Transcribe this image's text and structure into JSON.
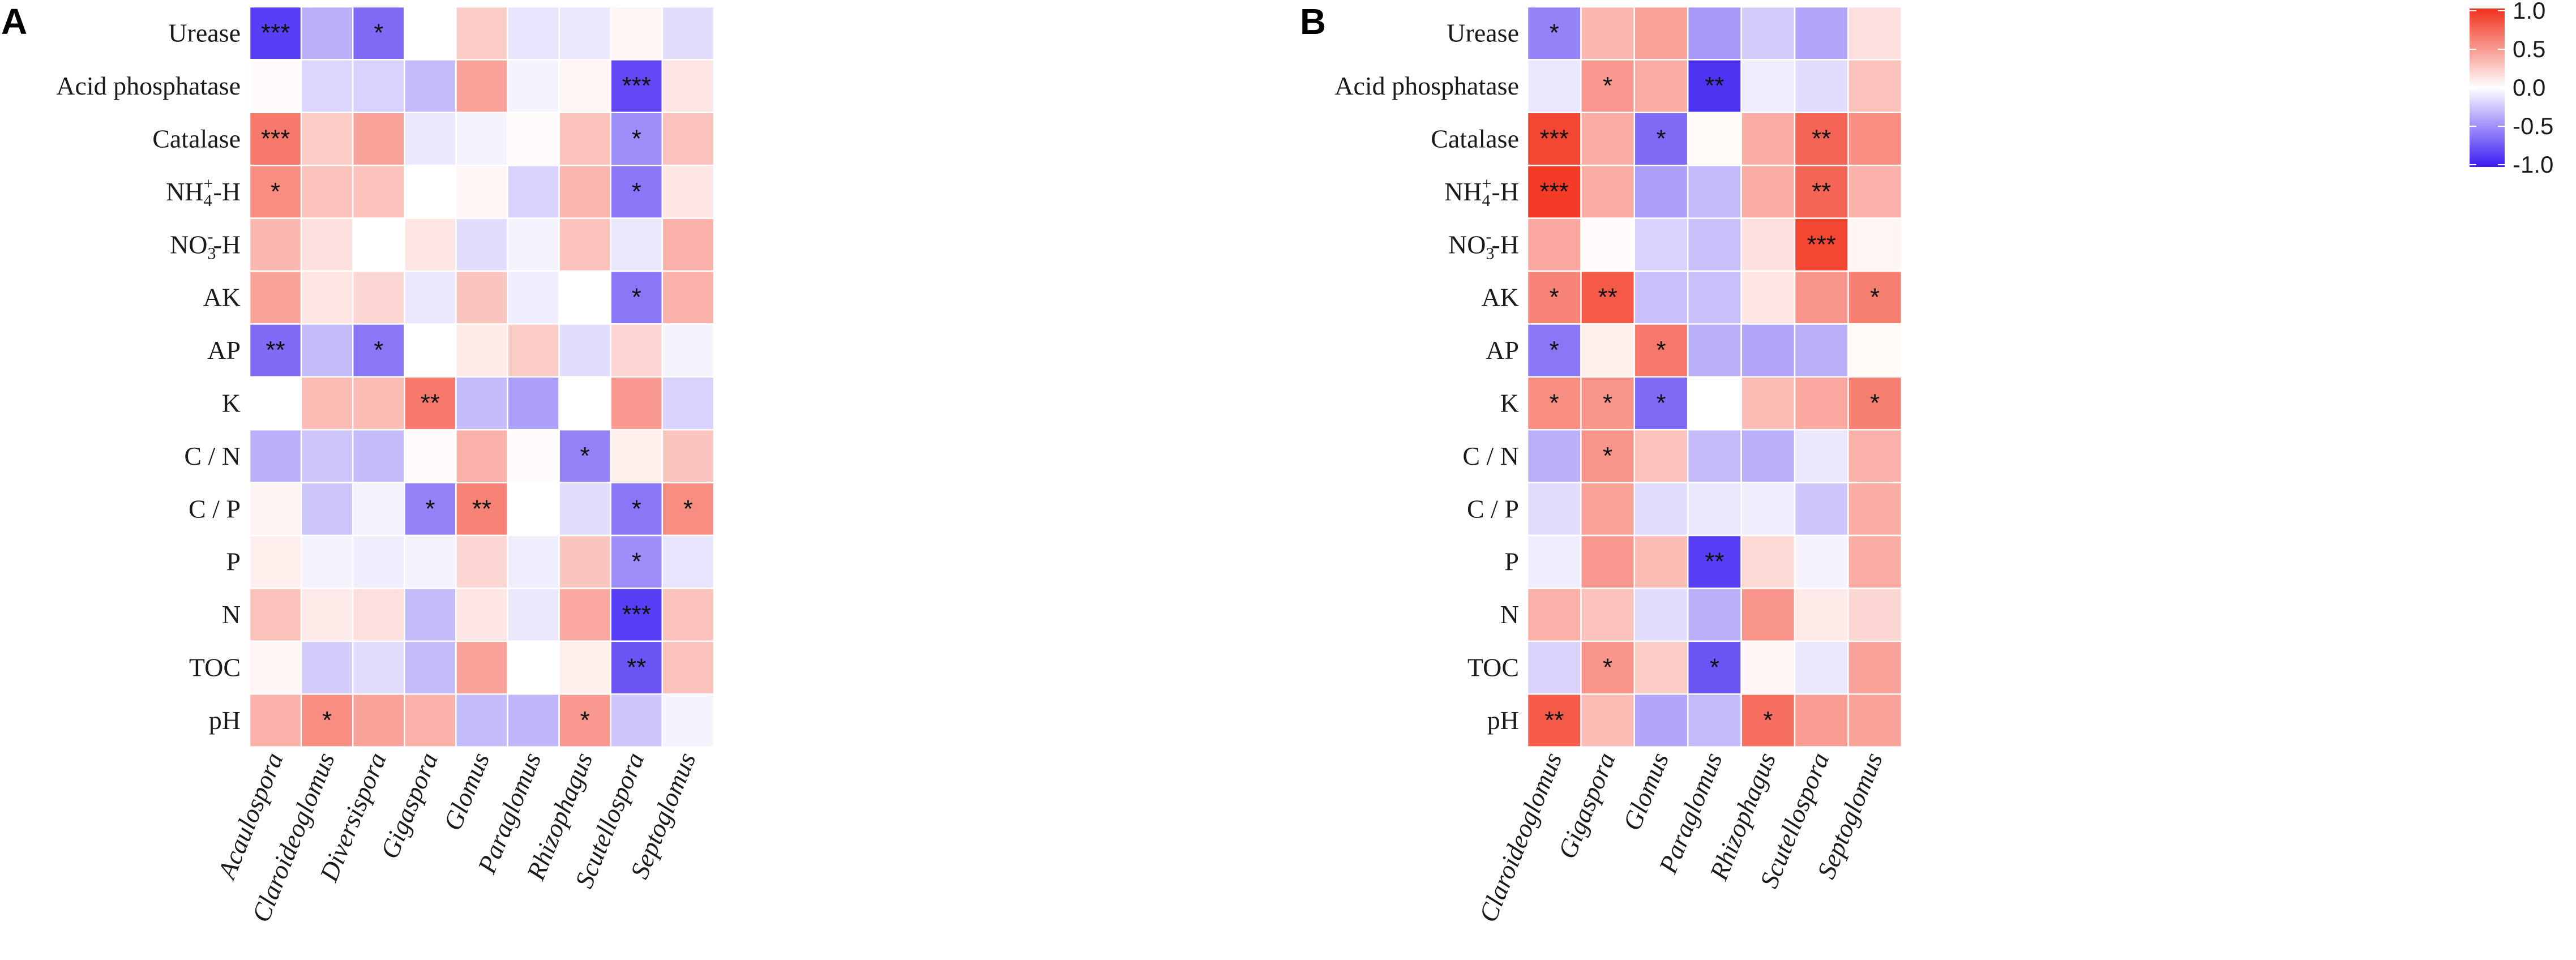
{
  "chart_data": [
    {
      "type": "heatmap",
      "panel": "A",
      "rows": [
        "Urease",
        "Acid phosphatase",
        "Catalase",
        "NH4+-H",
        "NO3--H",
        "AK",
        "AP",
        "K",
        "C / N",
        "C / P",
        "P",
        "N",
        "TOC",
        "pH"
      ],
      "row_labels_display": [
        {
          "base": "Urease"
        },
        {
          "base": "Acid phosphatase"
        },
        {
          "base": "Catalase"
        },
        {
          "base": "NH",
          "sub": "4",
          "sup": "+",
          "tail": "-H"
        },
        {
          "base": "NO",
          "sub": "3",
          "sup": "-",
          "tail": "-H"
        },
        {
          "base": "AK"
        },
        {
          "base": "AP"
        },
        {
          "base": "K"
        },
        {
          "base": "C / N"
        },
        {
          "base": "C / P"
        },
        {
          "base": "P"
        },
        {
          "base": "N"
        },
        {
          "base": "TOC"
        },
        {
          "base": "pH"
        }
      ],
      "columns": [
        "Acaulospora",
        "Claroideoglomus",
        "Diversispora",
        "Gigaspora",
        "Glomus",
        "Paraglomus",
        "Rhizophagus",
        "Scutellospora",
        "Septoglomus"
      ],
      "values": [
        [
          -0.85,
          -0.35,
          -0.65,
          0.0,
          0.25,
          -0.12,
          -0.1,
          0.05,
          -0.15
        ],
        [
          0.02,
          -0.18,
          -0.2,
          -0.3,
          0.45,
          -0.05,
          0.05,
          -0.8,
          0.12
        ],
        [
          0.65,
          0.25,
          0.45,
          -0.1,
          -0.05,
          0.02,
          0.3,
          -0.5,
          0.3
        ],
        [
          0.55,
          0.3,
          0.3,
          0.0,
          0.05,
          -0.2,
          0.35,
          -0.6,
          0.12
        ],
        [
          0.35,
          0.15,
          0.0,
          0.12,
          -0.15,
          -0.05,
          0.3,
          -0.1,
          0.38
        ],
        [
          0.45,
          0.12,
          0.2,
          -0.1,
          0.28,
          -0.08,
          0.0,
          -0.6,
          0.38
        ],
        [
          -0.65,
          -0.3,
          -0.6,
          0.0,
          0.1,
          0.25,
          -0.15,
          0.2,
          -0.05
        ],
        [
          0.0,
          0.32,
          0.32,
          0.65,
          -0.3,
          -0.42,
          0.0,
          0.5,
          -0.2
        ],
        [
          -0.35,
          -0.25,
          -0.3,
          0.02,
          0.38,
          0.02,
          -0.55,
          0.08,
          0.28
        ],
        [
          0.06,
          -0.25,
          -0.05,
          -0.55,
          0.6,
          0.0,
          -0.15,
          -0.6,
          0.55
        ],
        [
          0.08,
          -0.05,
          -0.08,
          -0.05,
          0.2,
          -0.08,
          0.28,
          -0.5,
          -0.12
        ],
        [
          0.3,
          0.1,
          0.15,
          -0.3,
          0.12,
          -0.1,
          0.42,
          -0.85,
          0.3
        ],
        [
          0.04,
          -0.22,
          -0.15,
          -0.3,
          0.45,
          0.0,
          0.08,
          -0.75,
          0.3
        ],
        [
          0.38,
          0.55,
          0.45,
          0.38,
          -0.3,
          -0.32,
          0.5,
          -0.25,
          -0.05
        ]
      ],
      "significance": [
        [
          "***",
          "",
          "*",
          "",
          "",
          "",
          "",
          "",
          ""
        ],
        [
          "",
          "",
          "",
          "",
          "",
          "",
          "",
          "***",
          ""
        ],
        [
          "***",
          "",
          "",
          "",
          "",
          "",
          "",
          "*",
          ""
        ],
        [
          "*",
          "",
          "",
          "",
          "",
          "",
          "",
          "*",
          ""
        ],
        [
          "",
          "",
          "",
          "",
          "",
          "",
          "",
          "",
          ""
        ],
        [
          "",
          "",
          "",
          "",
          "",
          "",
          "",
          "*",
          ""
        ],
        [
          "**",
          "",
          "*",
          "",
          "",
          "",
          "",
          "",
          ""
        ],
        [
          "",
          "",
          "",
          "**",
          "",
          "",
          "",
          "",
          ""
        ],
        [
          "",
          "",
          "",
          "",
          "",
          "",
          "*",
          "",
          ""
        ],
        [
          "",
          "",
          "",
          "*",
          "**",
          "",
          "",
          "*",
          "*"
        ],
        [
          "",
          "",
          "",
          "",
          "",
          "",
          "",
          "*",
          ""
        ],
        [
          "",
          "",
          "",
          "",
          "",
          "",
          "",
          "***",
          ""
        ],
        [
          "",
          "",
          "",
          "",
          "",
          "",
          "",
          "**",
          ""
        ],
        [
          "",
          "*",
          "",
          "",
          "",
          "",
          "*",
          "",
          ""
        ]
      ]
    },
    {
      "type": "heatmap",
      "panel": "B",
      "rows": [
        "Urease",
        "Acid phosphatase",
        "Catalase",
        "NH4+-H",
        "NO3--H",
        "AK",
        "AP",
        "K",
        "C / N",
        "C / P",
        "P",
        "N",
        "TOC",
        "pH"
      ],
      "row_labels_display": [
        {
          "base": "Urease"
        },
        {
          "base": "Acid phosphatase"
        },
        {
          "base": "Catalase"
        },
        {
          "base": "NH",
          "sub": "4",
          "sup": "+",
          "tail": "-H"
        },
        {
          "base": "NO",
          "sub": "3",
          "sup": "-",
          "tail": "-H"
        },
        {
          "base": "AK"
        },
        {
          "base": "AP"
        },
        {
          "base": "K"
        },
        {
          "base": "C / N"
        },
        {
          "base": "C / P"
        },
        {
          "base": "P"
        },
        {
          "base": "N"
        },
        {
          "base": "TOC"
        },
        {
          "base": "pH"
        }
      ],
      "columns": [
        "Claroideoglomus",
        "Gigaspora",
        "Glomus",
        "Paraglomus",
        "Rhizophagus",
        "Scutellospora",
        "Septoglomus"
      ],
      "values": [
        [
          -0.55,
          0.35,
          0.45,
          -0.45,
          -0.22,
          -0.4,
          0.15
        ],
        [
          -0.1,
          0.5,
          0.4,
          -0.9,
          -0.08,
          -0.15,
          0.3
        ],
        [
          0.9,
          0.4,
          -0.65,
          0.03,
          0.4,
          0.75,
          0.55
        ],
        [
          0.95,
          0.4,
          -0.42,
          -0.3,
          0.4,
          0.75,
          0.38
        ],
        [
          0.42,
          0.02,
          -0.2,
          -0.28,
          0.15,
          0.9,
          0.05
        ],
        [
          0.6,
          0.8,
          -0.28,
          -0.28,
          0.12,
          0.52,
          0.62
        ],
        [
          -0.6,
          0.08,
          0.65,
          -0.35,
          -0.4,
          -0.35,
          0.03
        ],
        [
          0.55,
          0.52,
          -0.65,
          0.0,
          0.32,
          0.42,
          0.62
        ],
        [
          -0.35,
          0.52,
          0.3,
          -0.3,
          -0.35,
          -0.1,
          0.38
        ],
        [
          -0.15,
          0.45,
          -0.15,
          -0.1,
          -0.08,
          -0.25,
          0.4
        ],
        [
          -0.08,
          0.5,
          0.32,
          -0.85,
          0.18,
          -0.05,
          0.4
        ],
        [
          0.38,
          0.3,
          -0.15,
          -0.35,
          0.52,
          0.1,
          0.2
        ],
        [
          -0.2,
          0.52,
          0.25,
          -0.75,
          0.05,
          -0.1,
          0.45
        ],
        [
          0.8,
          0.32,
          -0.4,
          -0.3,
          0.7,
          0.48,
          0.45
        ]
      ],
      "significance": [
        [
          "*",
          "",
          "",
          "",
          "",
          "",
          ""
        ],
        [
          "",
          "*",
          "",
          "**",
          "",
          "",
          ""
        ],
        [
          "***",
          "",
          "*",
          "",
          "",
          "**",
          ""
        ],
        [
          "***",
          "",
          "",
          "",
          "",
          "**",
          ""
        ],
        [
          "",
          "",
          "",
          "",
          "",
          "***",
          ""
        ],
        [
          "*",
          "**",
          "",
          "",
          "",
          "",
          "*"
        ],
        [
          "*",
          "",
          "*",
          "",
          "",
          "",
          ""
        ],
        [
          "*",
          "*",
          "*",
          "",
          "",
          "",
          "*"
        ],
        [
          "",
          "*",
          "",
          "",
          "",
          "",
          ""
        ],
        [
          "",
          "",
          "",
          "",
          "",
          "",
          ""
        ],
        [
          "",
          "",
          "",
          "**",
          "",
          "",
          ""
        ],
        [
          "",
          "",
          "",
          "",
          "",
          "",
          ""
        ],
        [
          "",
          "*",
          "",
          "*",
          "",
          "",
          ""
        ],
        [
          "**",
          "",
          "",
          "",
          "*",
          "",
          ""
        ]
      ]
    }
  ],
  "legend": {
    "range": [
      -1.0,
      1.0
    ],
    "ticks": [
      "1.0",
      "0.5",
      "0.0",
      "-0.5",
      "-1.0"
    ],
    "colors": {
      "low": "#3b1cf2",
      "mid": "#ffffff",
      "high": "#f2311c"
    }
  }
}
